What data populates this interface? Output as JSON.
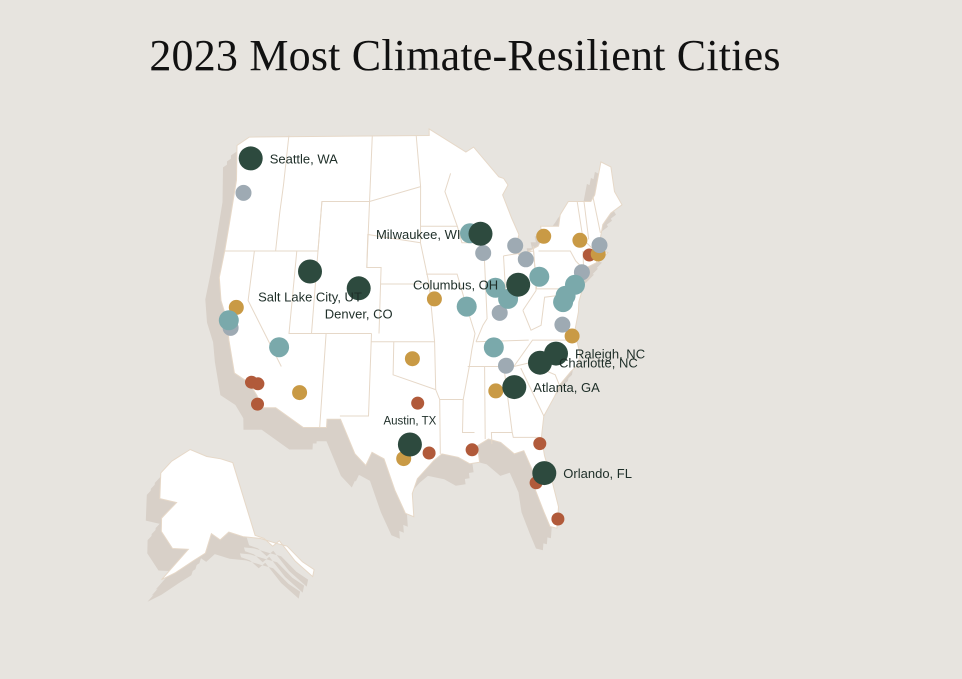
{
  "title": "2023 Most Climate-Resilient Cities",
  "colors": {
    "background": "#e7e4df",
    "land": "#ffffff",
    "shadow": "#d8d0c8",
    "border": "#e6d8c8",
    "top": "#2d4a3e",
    "teal": "#7aa9ab",
    "gray": "#9eaab3",
    "gold": "#c99a45",
    "rust": "#b15a3a"
  },
  "labeled_cities": [
    {
      "name": "Seattle, WA",
      "lon": -122.33,
      "lat": 47.61,
      "label_side": "right"
    },
    {
      "name": "Salt Lake City, UT",
      "lon": -111.89,
      "lat": 40.76,
      "label_side": "below"
    },
    {
      "name": "Denver, CO",
      "lon": -104.99,
      "lat": 39.74,
      "label_side": "below"
    },
    {
      "name": "Milwaukee, WI",
      "lon": -87.91,
      "lat": 43.04,
      "label_side": "left"
    },
    {
      "name": "Columbus, OH",
      "lon": -83.0,
      "lat": 39.96,
      "label_side": "left"
    },
    {
      "name": "Raleigh, NC",
      "lon": -78.64,
      "lat": 35.78,
      "label_side": "right"
    },
    {
      "name": "Charlotte, NC",
      "lon": -80.84,
      "lat": 35.23,
      "label_side": "right"
    },
    {
      "name": "Atlanta, GA",
      "lon": -84.39,
      "lat": 33.75,
      "label_side": "right"
    },
    {
      "name": "Austin, TX",
      "lon": -97.74,
      "lat": 30.27,
      "label_side": "above"
    },
    {
      "name": "Orlando, FL",
      "lon": -81.38,
      "lat": 28.54,
      "label_side": "right"
    }
  ],
  "other_cities": {
    "teal": [
      {
        "lon": -122.27,
        "lat": 37.8
      },
      {
        "lon": -115.14,
        "lat": 36.17
      },
      {
        "lon": -89.4,
        "lat": 43.07
      },
      {
        "lon": -90.2,
        "lat": 38.63
      },
      {
        "lon": -86.16,
        "lat": 39.77
      },
      {
        "lon": -84.51,
        "lat": 39.1
      },
      {
        "lon": -79.99,
        "lat": 40.44
      },
      {
        "lon": -75.16,
        "lat": 39.95
      },
      {
        "lon": -76.61,
        "lat": 39.29
      },
      {
        "lon": -77.04,
        "lat": 38.9
      },
      {
        "lon": -86.78,
        "lat": 36.16
      }
    ],
    "gray": [
      {
        "lon": -122.68,
        "lat": 45.52
      },
      {
        "lon": -121.89,
        "lat": 37.34
      },
      {
        "lon": -87.63,
        "lat": 41.88
      },
      {
        "lon": -83.05,
        "lat": 42.33
      },
      {
        "lon": -81.69,
        "lat": 41.5
      },
      {
        "lon": -85.76,
        "lat": 38.25
      },
      {
        "lon": -85.31,
        "lat": 35.05
      },
      {
        "lon": -74.0,
        "lat": 40.71
      },
      {
        "lon": -77.43,
        "lat": 37.54
      },
      {
        "lon": -71.06,
        "lat": 42.36
      }
    ],
    "gold": [
      {
        "lon": -121.49,
        "lat": 38.58
      },
      {
        "lon": -111.93,
        "lat": 33.42
      },
      {
        "lon": -94.58,
        "lat": 39.1
      },
      {
        "lon": -97.52,
        "lat": 35.47
      },
      {
        "lon": -98.49,
        "lat": 29.42
      },
      {
        "lon": -86.8,
        "lat": 33.52
      },
      {
        "lon": -78.88,
        "lat": 42.89
      },
      {
        "lon": -73.76,
        "lat": 42.65
      },
      {
        "lon": -71.41,
        "lat": 41.82
      },
      {
        "lon": -76.29,
        "lat": 36.85
      }
    ],
    "rust": [
      {
        "lon": -118.24,
        "lat": 34.05
      },
      {
        "lon": -117.4,
        "lat": 33.95
      },
      {
        "lon": -117.16,
        "lat": 32.72
      },
      {
        "lon": -96.8,
        "lat": 32.78
      },
      {
        "lon": -95.37,
        "lat": 29.76
      },
      {
        "lon": -90.07,
        "lat": 29.95
      },
      {
        "lon": -81.66,
        "lat": 30.33
      },
      {
        "lon": -82.46,
        "lat": 27.95
      },
      {
        "lon": -80.19,
        "lat": 25.76
      },
      {
        "lon": -72.68,
        "lat": 41.76
      }
    ]
  }
}
